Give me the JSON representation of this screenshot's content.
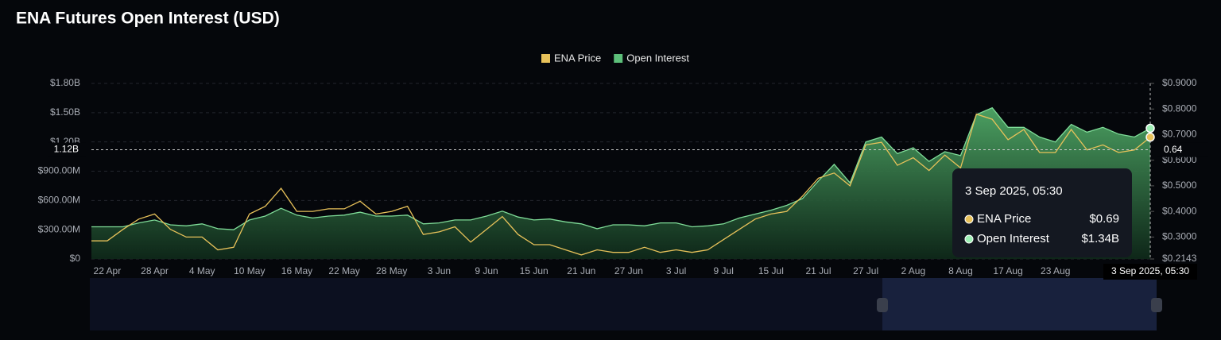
{
  "chart_data": {
    "type": "line",
    "title": "ENA Futures Open Interest (USD)",
    "categories": [
      null,
      "22 Apr",
      null,
      null,
      "28 Apr",
      null,
      null,
      "4 May",
      null,
      null,
      "10 May",
      null,
      null,
      "16 May",
      null,
      null,
      "22 May",
      null,
      null,
      "28 May",
      null,
      null,
      "3 Jun",
      null,
      null,
      "9 Jun",
      null,
      null,
      "15 Jun",
      null,
      null,
      "21 Jun",
      null,
      null,
      "27 Jun",
      null,
      null,
      "3 Jul",
      null,
      null,
      "9 Jul",
      null,
      null,
      "15 Jul",
      null,
      null,
      "21 Jul",
      null,
      null,
      "27 Jul",
      null,
      null,
      "2 Aug",
      null,
      null,
      "8 Aug",
      null,
      null,
      "17 Aug",
      null,
      null,
      "23 Aug",
      null,
      null,
      null,
      null,
      null,
      "3 Sep 2025, 05:30"
    ],
    "series": [
      {
        "name": "ENA Price",
        "color": "#e8c25a",
        "axis": "y2",
        "values": [
          0.285,
          0.285,
          0.33,
          0.37,
          0.39,
          0.33,
          0.3,
          0.3,
          0.25,
          0.26,
          0.39,
          0.42,
          0.49,
          0.4,
          0.4,
          0.41,
          0.41,
          0.44,
          0.39,
          0.4,
          0.42,
          0.31,
          0.32,
          0.34,
          0.28,
          0.33,
          0.38,
          0.31,
          0.27,
          0.27,
          0.25,
          0.23,
          0.25,
          0.24,
          0.24,
          0.26,
          0.24,
          0.25,
          0.24,
          0.25,
          0.29,
          0.33,
          0.37,
          0.39,
          0.4,
          0.46,
          0.53,
          0.55,
          0.5,
          0.66,
          0.67,
          0.58,
          0.61,
          0.56,
          0.62,
          0.57,
          0.78,
          0.76,
          0.68,
          0.72,
          0.63,
          0.63,
          0.72,
          0.64,
          0.66,
          0.63,
          0.64,
          0.69
        ]
      },
      {
        "name": "Open Interest",
        "color": "#5dbf7a",
        "values": [
          330000000,
          330000000,
          330000000,
          370000000,
          400000000,
          350000000,
          340000000,
          360000000,
          310000000,
          300000000,
          400000000,
          440000000,
          520000000,
          450000000,
          420000000,
          440000000,
          450000000,
          480000000,
          440000000,
          440000000,
          450000000,
          360000000,
          370000000,
          400000000,
          400000000,
          440000000,
          490000000,
          430000000,
          400000000,
          410000000,
          380000000,
          360000000,
          310000000,
          350000000,
          350000000,
          340000000,
          370000000,
          370000000,
          330000000,
          340000000,
          360000000,
          420000000,
          460000000,
          500000000,
          550000000,
          620000000,
          800000000,
          970000000,
          780000000,
          1200000000,
          1250000000,
          1080000000,
          1140000000,
          1000000000,
          1100000000,
          1060000000,
          1480000000,
          1550000000,
          1350000000,
          1350000000,
          1250000000,
          1200000000,
          1380000000,
          1300000000,
          1350000000,
          1280000000,
          1250000000,
          1340000000
        ]
      }
    ],
    "ylim": [
      0,
      1800000000
    ],
    "yticks": [
      {
        "value": 0,
        "label": "$0"
      },
      {
        "value": 300000000,
        "label": "$300.00M"
      },
      {
        "value": 600000000,
        "label": "$600.00M"
      },
      {
        "value": 900000000,
        "label": "$900.00M"
      },
      {
        "value": 1200000000,
        "label": "$1.20B"
      },
      {
        "value": 1500000000,
        "label": "$1.50B"
      },
      {
        "value": 1800000000,
        "label": "$1.80B"
      }
    ],
    "y2lim": [
      0.2143,
      0.9
    ],
    "y2ticks": [
      {
        "value": 0.2143,
        "label": "$0.2143"
      },
      {
        "value": 0.3,
        "label": "$0.3000"
      },
      {
        "value": 0.4,
        "label": "$0.4000"
      },
      {
        "value": 0.5,
        "label": "$0.5000"
      },
      {
        "value": 0.6,
        "label": "$0.6000"
      },
      {
        "value": 0.7,
        "label": "$0.7000"
      },
      {
        "value": 0.8,
        "label": "$0.8000"
      },
      {
        "value": 0.9,
        "label": "$0.9000"
      }
    ],
    "grid": true,
    "legend": "top",
    "crosshair": {
      "y": {
        "value": 1120000000,
        "label": "1.12B"
      },
      "y2": {
        "value": 0.64,
        "label": "0.64"
      }
    },
    "tooltip": {
      "value_labels": [
        "$0.69",
        "$1.34B"
      ]
    }
  }
}
